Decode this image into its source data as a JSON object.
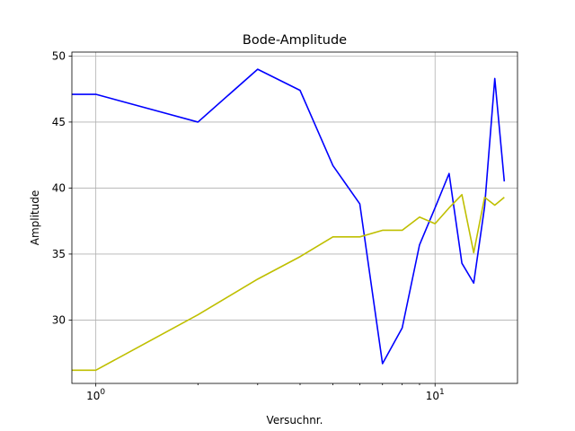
{
  "chart_data": {
    "type": "line",
    "title": "Bode-Amplitude",
    "xlabel": "Versuchnr.",
    "ylabel": "Amplitude",
    "xscale": "log",
    "xlim": [
      0.85,
      17.5
    ],
    "ylim": [
      25.2,
      50.3
    ],
    "grid": true,
    "x_ticks": [
      1,
      10
    ],
    "x_tick_labels": [
      {
        "base": "10",
        "exp": "0"
      },
      {
        "base": "10",
        "exp": "1"
      }
    ],
    "y_ticks": [
      30,
      35,
      40,
      45,
      50
    ],
    "y_tick_labels": [
      "30",
      "35",
      "40",
      "45",
      "50"
    ],
    "x": [
      0.8,
      1,
      2,
      3,
      4,
      5,
      6,
      7,
      8,
      9,
      10,
      11,
      12,
      13,
      14,
      15,
      16
    ],
    "series": [
      {
        "color": "#0000ff",
        "values": [
          47.1,
          47.1,
          45.0,
          49.0,
          47.4,
          41.7,
          38.8,
          26.7,
          29.4,
          35.7,
          38.5,
          41.1,
          34.3,
          32.8,
          38.6,
          48.3,
          40.5
        ]
      },
      {
        "color": "#bfbf00",
        "values": [
          26.2,
          26.2,
          30.4,
          33.1,
          34.8,
          36.3,
          36.3,
          36.8,
          36.8,
          37.8,
          37.3,
          38.5,
          39.5,
          35.1,
          39.3,
          38.7,
          39.3
        ]
      }
    ]
  }
}
